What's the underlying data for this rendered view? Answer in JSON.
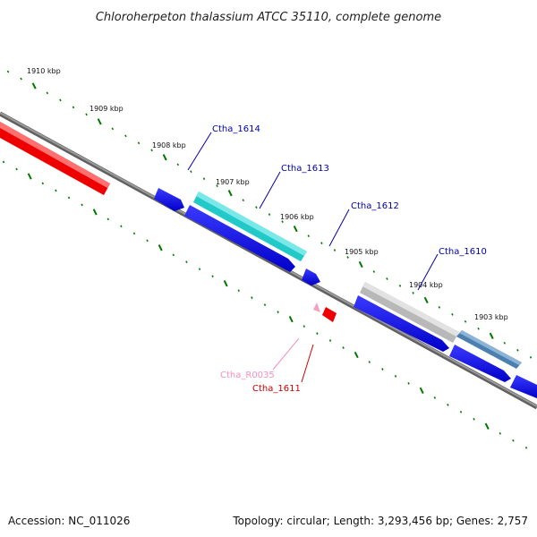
{
  "title": "Chloroherpeton thalassium ATCC 35110, complete genome",
  "footer": {
    "accession": "Accession: NC_011026",
    "summary": "Topology: circular; Length: 3,293,456 bp; Genes: 2,757"
  },
  "scale_labels": [
    "1910 kbp",
    "1909 kbp",
    "1908 kbp",
    "1907 kbp",
    "1906 kbp",
    "1905 kbp",
    "1904 kbp",
    "1903 kbp"
  ],
  "genes": [
    {
      "name": "Ctha_1614",
      "color": "#0000aa"
    },
    {
      "name": "Ctha_1613",
      "color": "#0000aa"
    },
    {
      "name": "Ctha_1612",
      "color": "#0000aa"
    },
    {
      "name": "Ctha_1610",
      "color": "#0000aa"
    },
    {
      "name": "Ctha_R0035",
      "color": "#f48fbf"
    },
    {
      "name": "Ctha_1611",
      "color": "#cc0000"
    }
  ],
  "colors": {
    "backbone": "#808080",
    "tick": "#007700",
    "cds_blue": "#0000ee",
    "cds_red": "#ee0000",
    "cyan": "#22c9c9",
    "grey": "#bdbdbd",
    "steel": "#4a7fb0",
    "rna_pink": "#f5a0c0"
  }
}
